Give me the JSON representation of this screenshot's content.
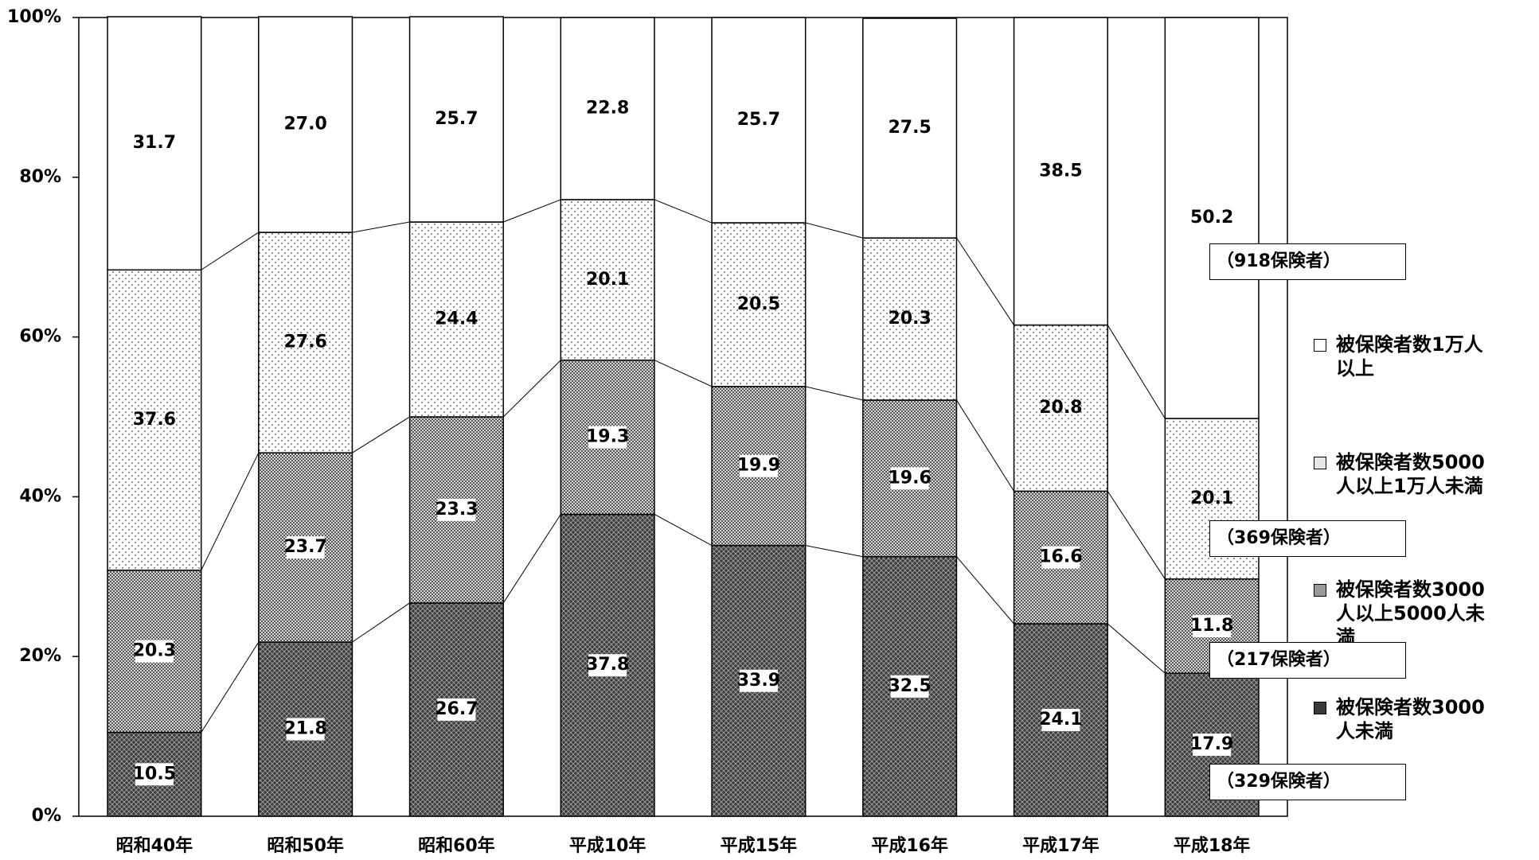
{
  "chart_data": {
    "type": "stacked_bar_percent",
    "categories": [
      "昭和40年",
      "昭和50年",
      "昭和60年",
      "平成10年",
      "平成15年",
      "平成16年",
      "平成17年",
      "平成18年"
    ],
    "series": [
      {
        "name": "被保険者数3000人未満",
        "color": "#3a3a3a",
        "values": [
          10.5,
          21.8,
          26.7,
          37.8,
          33.9,
          32.5,
          24.1,
          17.9
        ],
        "value_labels": [
          "10.5",
          "21.8",
          "26.7",
          "37.8",
          "33.9",
          "32.5",
          "24.1",
          "17.9"
        ]
      },
      {
        "name": "被保険者数3000人以上5000人未満",
        "color": "#9a9a9a",
        "values": [
          20.3,
          23.7,
          23.3,
          19.3,
          19.9,
          19.6,
          16.6,
          11.8
        ],
        "value_labels": [
          "20.3",
          "23.7",
          "23.3",
          "19.3",
          "19.9",
          "19.6",
          "16.6",
          "11.8"
        ]
      },
      {
        "name": "被保険者数5000人以上1万人未満",
        "color": "#e6e6e6",
        "values": [
          37.6,
          27.6,
          24.4,
          20.1,
          20.5,
          20.3,
          20.8,
          20.1
        ],
        "value_labels": [
          "37.6",
          "27.6",
          "24.4",
          "20.1",
          "20.5",
          "20.3",
          "20.8",
          "20.1"
        ]
      },
      {
        "name": "被保険者数1万人以上",
        "color": "#ffffff",
        "values": [
          31.7,
          27.0,
          25.7,
          22.8,
          25.7,
          27.5,
          38.5,
          50.2
        ],
        "value_labels": [
          "31.7",
          "27.0",
          "25.7",
          "22.8",
          "25.7",
          "27.5",
          "38.5",
          "50.2"
        ]
      }
    ],
    "annotations": [
      "（918保険者）",
      "（369保険者）",
      "（217保険者）",
      "（329保険者）"
    ],
    "ylim": [
      0,
      100
    ],
    "yticks": [
      {
        "value": 0,
        "label": "0%"
      },
      {
        "value": 20,
        "label": "20%"
      },
      {
        "value": 40,
        "label": "40%"
      },
      {
        "value": 60,
        "label": "60%"
      },
      {
        "value": 80,
        "label": "80%"
      },
      {
        "value": 100,
        "label": "100%"
      }
    ],
    "legend": "right"
  }
}
